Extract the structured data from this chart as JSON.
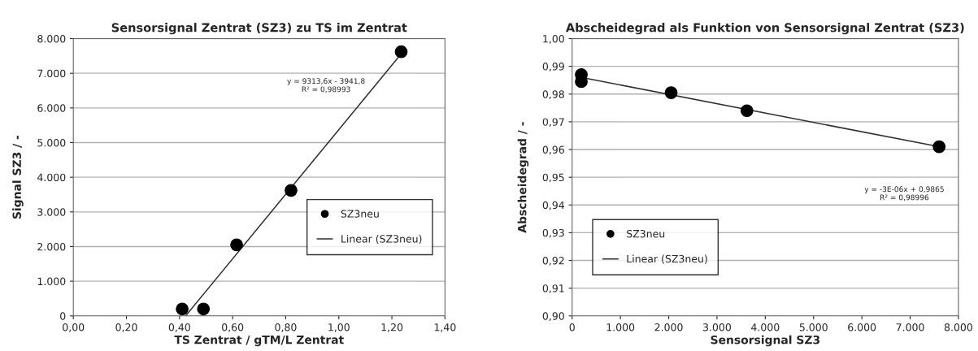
{
  "chart_data": [
    {
      "type": "scatter",
      "title": "Sensorsignal Zentrat (SZ3) zu TS im Zentrat",
      "xlabel": "TS Zentrat / gTM/L Zentrat",
      "ylabel": "Signal SZ3 / -",
      "series": [
        {
          "name": "SZ3neu",
          "color": "#000000",
          "marker": "circle",
          "x": [
            0.41,
            0.49,
            0.615,
            0.82,
            1.235
          ],
          "values": [
            200,
            200,
            2050,
            3620,
            7620
          ]
        },
        {
          "name": "Linear (SZ3neu)",
          "type": "line",
          "color": "#303030",
          "marker": "none",
          "x": [
            0.423,
            1.235
          ],
          "values": [
            0,
            7560
          ]
        }
      ],
      "xlim": [
        0,
        1.4
      ],
      "xticks": [
        {
          "value": 0,
          "label": "0,00"
        },
        {
          "value": 0.2,
          "label": "0,20"
        },
        {
          "value": 0.4,
          "label": "0,40"
        },
        {
          "value": 0.6,
          "label": "0,60"
        },
        {
          "value": 0.8,
          "label": "0,80"
        },
        {
          "value": 1.0,
          "label": "1,00"
        },
        {
          "value": 1.2,
          "label": "1,20"
        },
        {
          "value": 1.4,
          "label": "1,40"
        }
      ],
      "ylim": [
        0,
        8000
      ],
      "yticks": [
        0,
        {
          "value": 1000,
          "label": "1.000"
        },
        {
          "value": 2000,
          "label": "2.000"
        },
        {
          "value": 3000,
          "label": "3.000"
        },
        {
          "value": 4000,
          "label": "4.000"
        },
        {
          "value": 5000,
          "label": "5.000"
        },
        {
          "value": 6000,
          "label": "6.000"
        },
        {
          "value": 7000,
          "label": "7.000"
        },
        {
          "value": 8000,
          "label": "8.000"
        }
      ],
      "grid": "y",
      "legend": "right",
      "annotations": [
        "y = 9313,6x - 3941,8\nR² = 0,98993"
      ]
    },
    {
      "type": "scatter",
      "title": "Abscheidegrad als Funktion von Sensorsignal Zentrat (SZ3)",
      "xlabel": "Sensorsignal SZ3",
      "ylabel": "Abscheidegrad / -",
      "series": [
        {
          "name": "SZ3neu",
          "color": "#000000",
          "marker": "circle",
          "x": [
            190,
            190,
            2050,
            3620,
            7600
          ],
          "values": [
            0.987,
            0.9845,
            0.9805,
            0.974,
            0.961
          ]
        },
        {
          "name": "Linear (SZ3neu)",
          "type": "line",
          "color": "#303030",
          "marker": "none",
          "x": [
            190,
            7600
          ],
          "values": [
            0.986,
            0.961
          ]
        }
      ],
      "xlim": [
        0,
        8000
      ],
      "xticks": [
        0,
        {
          "value": 1000,
          "label": "1.000"
        },
        {
          "value": 2000,
          "label": "2.000"
        },
        {
          "value": 3000,
          "label": "3.000"
        },
        {
          "value": 4000,
          "label": "4.000"
        },
        {
          "value": 5000,
          "label": "5.000"
        },
        {
          "value": 6000,
          "label": "6.000"
        },
        {
          "value": 7000,
          "label": "7.000"
        },
        {
          "value": 8000,
          "label": "8.000"
        }
      ],
      "ylim": [
        0.9,
        1.0
      ],
      "yticks": [
        {
          "value": 0.9,
          "label": "0,90"
        },
        {
          "value": 0.91,
          "label": "0,91"
        },
        {
          "value": 0.92,
          "label": "0,92"
        },
        {
          "value": 0.93,
          "label": "0,93"
        },
        {
          "value": 0.94,
          "label": "0,94"
        },
        {
          "value": 0.95,
          "label": "0,95"
        },
        {
          "value": 0.96,
          "label": "0,96"
        },
        {
          "value": 0.97,
          "label": "0,97"
        },
        {
          "value": 0.98,
          "label": "0,98"
        },
        {
          "value": 0.99,
          "label": "0,99"
        },
        {
          "value": 1.0,
          "label": "1,00"
        }
      ],
      "grid": "y",
      "legend": "lower left",
      "annotations": [
        "y = -3E-06x + 0,9865\nR² = 0,98996"
      ]
    }
  ]
}
